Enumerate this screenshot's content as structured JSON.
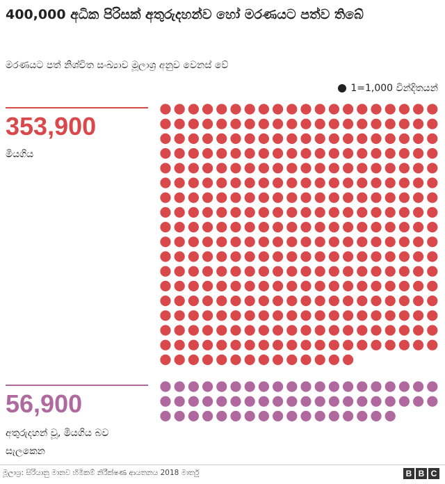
{
  "chart_data": {
    "type": "dot",
    "title": "400,000 අධික පිරිසක් අතුරුදහන්ව හෝ මරණයට පත්ව තිබේ",
    "subtitle": "මරණයට පත් නිශ්චිත සංඛ්‍යාව මූලාශ්‍ර අනුව වෙනස් වේ",
    "unit": {
      "value": 1000,
      "label": "1=1,000 වින්දිතයන්"
    },
    "unit_color": "#222222",
    "series": [
      {
        "name": "මියගිය",
        "color": "#d9484a",
        "values": [
          353900
        ],
        "value_labels": [
          "353,900"
        ]
      },
      {
        "name": "අතුරුදහන් වූ, මියගිය බව සැලකෙන",
        "color": "#b0699e",
        "values": [
          56900
        ],
        "value_labels": [
          "56,900"
        ]
      }
    ],
    "source": "මූලාශ්‍ර: සිරියානු මානව හිමිකම් නිරීක්ෂණ ආයතනය 2018 මාර්තු",
    "logo": [
      "B",
      "B",
      "C"
    ]
  }
}
